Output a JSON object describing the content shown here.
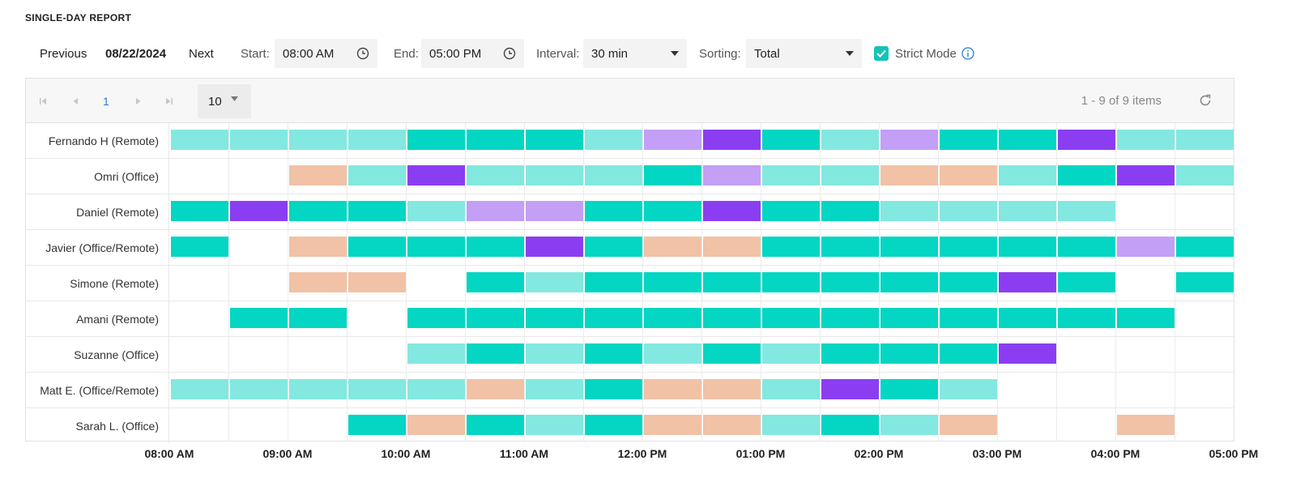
{
  "report_title": "SINGLE-DAY REPORT",
  "toolbar": {
    "previous_label": "Previous",
    "date": "08/22/2024",
    "next_label": "Next",
    "start_label": "Start:",
    "start_value": "08:00 AM",
    "end_label": "End:",
    "end_value": "05:00 PM",
    "interval_label": "Interval:",
    "interval_value": "30 min",
    "sorting_label": "Sorting:",
    "sorting_value": "Total",
    "strict_mode_label": "Strict Mode",
    "strict_mode_checked": true
  },
  "pager": {
    "current_page": "1",
    "page_size": "10",
    "items_info": "1 - 9 of 9 items"
  },
  "colors": {
    "light_teal": "#83e8e0",
    "teal": "#03d6c2",
    "light_purple": "#c39ff5",
    "purple": "#8b3ef1",
    "peach": "#f1c2a6",
    "accent": "#15c3b8",
    "link": "#2a7cd8"
  },
  "rows": [
    {
      "name": "Fernando H (Remote)",
      "cells": [
        1,
        1,
        1,
        1,
        2,
        2,
        2,
        1,
        3,
        4,
        2,
        1,
        3,
        2,
        2,
        4,
        1,
        1
      ]
    },
    {
      "name": "Omri (Office)",
      "cells": [
        0,
        0,
        5,
        1,
        4,
        1,
        1,
        1,
        2,
        3,
        1,
        1,
        5,
        5,
        1,
        2,
        4,
        1
      ]
    },
    {
      "name": "Daniel (Remote)",
      "cells": [
        2,
        4,
        2,
        2,
        1,
        3,
        3,
        2,
        2,
        4,
        2,
        2,
        1,
        1,
        1,
        1,
        0,
        0
      ]
    },
    {
      "name": "Javier (Office/Remote)",
      "cells": [
        2,
        0,
        5,
        2,
        2,
        2,
        4,
        2,
        5,
        5,
        2,
        2,
        2,
        2,
        2,
        2,
        3,
        2
      ]
    },
    {
      "name": "Simone (Remote)",
      "cells": [
        0,
        0,
        5,
        5,
        0,
        2,
        1,
        2,
        2,
        2,
        2,
        2,
        2,
        2,
        4,
        2,
        0,
        2
      ]
    },
    {
      "name": "Amani (Remote)",
      "cells": [
        0,
        2,
        2,
        0,
        2,
        2,
        2,
        2,
        2,
        2,
        2,
        2,
        2,
        2,
        2,
        2,
        2,
        0
      ]
    },
    {
      "name": "Suzanne (Office)",
      "cells": [
        0,
        0,
        0,
        0,
        1,
        2,
        1,
        2,
        1,
        2,
        1,
        2,
        2,
        2,
        4,
        0,
        0,
        0
      ]
    },
    {
      "name": "Matt E. (Office/Remote)",
      "cells": [
        1,
        1,
        1,
        1,
        1,
        5,
        1,
        2,
        5,
        5,
        1,
        4,
        2,
        1,
        0,
        0,
        0,
        0
      ]
    },
    {
      "name": "Sarah L. (Office)",
      "cells": [
        0,
        0,
        0,
        2,
        5,
        2,
        1,
        2,
        5,
        5,
        1,
        2,
        1,
        5,
        0,
        0,
        5,
        0
      ]
    }
  ],
  "time_axis": [
    "08:00 AM",
    "09:00 AM",
    "10:00 AM",
    "11:00 AM",
    "12:00 PM",
    "01:00 PM",
    "02:00 PM",
    "03:00 PM",
    "04:00 PM",
    "05:00 PM"
  ]
}
